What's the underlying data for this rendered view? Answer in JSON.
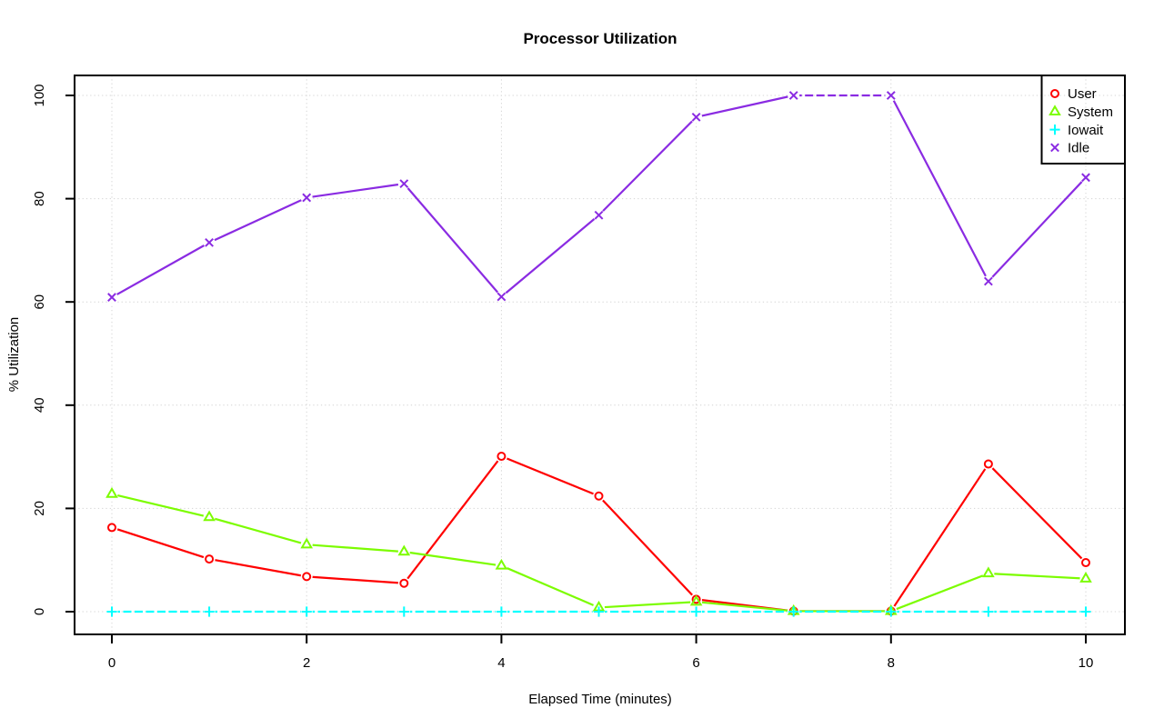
{
  "title": "Processor Utilization",
  "axes": {
    "x_label": "Elapsed Time (minutes)",
    "y_label": "% Utilization",
    "x_ticks": [
      0,
      2,
      4,
      6,
      8,
      10
    ],
    "y_ticks": [
      0,
      20,
      40,
      60,
      80,
      100
    ]
  },
  "legend": {
    "position": "top-right",
    "entries": [
      "User",
      "System",
      "Iowait",
      "Idle"
    ]
  },
  "chart_data": {
    "type": "line",
    "title": "Processor Utilization",
    "xlabel": "Elapsed Time (minutes)",
    "ylabel": "% Utilization",
    "x": [
      0,
      1,
      2,
      3,
      4,
      5,
      6,
      7,
      8,
      9,
      10
    ],
    "xlim": [
      -0.4,
      10.4
    ],
    "ylim": [
      -4,
      104
    ],
    "grid": true,
    "grid_color": "#d4d4d4",
    "legend_position": "top-right",
    "series": [
      {
        "name": "User",
        "color": "#ff0000",
        "marker": "circle",
        "line_style": "solid",
        "values": [
          16.3,
          10.2,
          6.8,
          5.5,
          30.1,
          22.4,
          2.4,
          0.1,
          0.1,
          28.6,
          9.5
        ]
      },
      {
        "name": "System",
        "color": "#7cfc00",
        "marker": "triangle",
        "line_style": "solid",
        "values": [
          22.8,
          18.3,
          13.0,
          11.6,
          8.9,
          0.8,
          1.9,
          0.1,
          0.1,
          7.4,
          6.4
        ]
      },
      {
        "name": "Iowait",
        "color": "#00ffff",
        "marker": "plus",
        "line_style": "dashed",
        "values": [
          0,
          0,
          0,
          0,
          0,
          0,
          0,
          0,
          0,
          0,
          0
        ]
      },
      {
        "name": "Idle",
        "color": "#8a2be2",
        "marker": "x",
        "line_style": "solid",
        "dashed_segments": [
          7
        ],
        "values": [
          60.9,
          71.5,
          80.2,
          82.9,
          61.0,
          76.8,
          95.8,
          100.0,
          100.0,
          64.0,
          84.1
        ]
      }
    ]
  }
}
